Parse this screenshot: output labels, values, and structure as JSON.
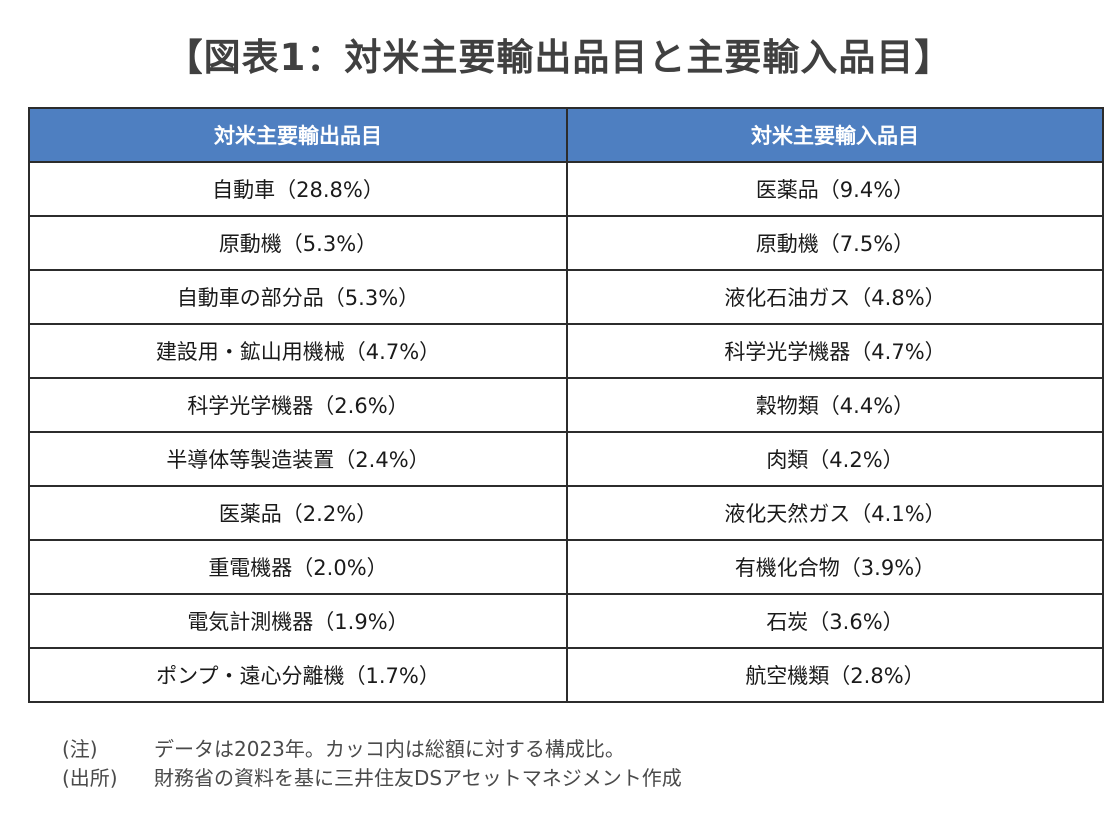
{
  "title": "【図表1：対米主要輸出品目と主要輸入品目】",
  "table": {
    "headers": [
      "対米主要輸出品目",
      "対米主要輸入品目"
    ],
    "rows": [
      [
        "自動車（28.8%）",
        "医薬品（9.4%）"
      ],
      [
        "原動機（5.3%）",
        "原動機（7.5%）"
      ],
      [
        "自動車の部分品（5.3%）",
        "液化石油ガス（4.8%）"
      ],
      [
        "建設用・鉱山用機械（4.7%）",
        "科学光学機器（4.7%）"
      ],
      [
        "科学光学機器（2.6%）",
        "穀物類（4.4%）"
      ],
      [
        "半導体等製造装置（2.4%）",
        "肉類（4.2%）"
      ],
      [
        "医薬品（2.2%）",
        "液化天然ガス（4.1%）"
      ],
      [
        "重電機器（2.0%）",
        "有機化合物（3.9%）"
      ],
      [
        "電気計測機器（1.9%）",
        "石炭（3.6%）"
      ],
      [
        "ポンプ・遠心分離機（1.7%）",
        "航空機類（2.8%）"
      ]
    ]
  },
  "notes": [
    {
      "label": "(注)",
      "text": "データは2023年。カッコ内は総額に対する構成比。"
    },
    {
      "label": "(出所)",
      "text": "財務省の資料を基に三井住友DSアセットマネジメント作成"
    }
  ],
  "colors": {
    "header_bg": "#4e7fc1",
    "header_text": "#ffffff",
    "border": "#2c2c2c"
  }
}
